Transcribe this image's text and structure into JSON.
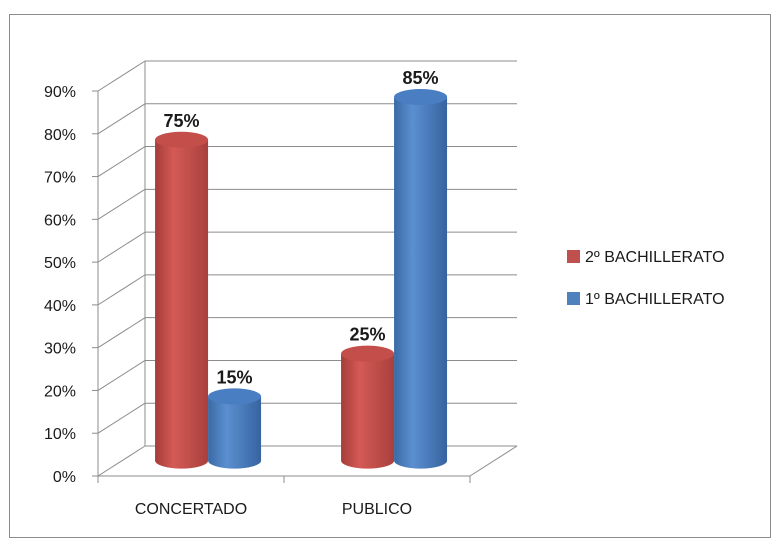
{
  "chart_data": {
    "type": "bar",
    "title": "",
    "xlabel": "",
    "ylabel": "",
    "categories": [
      "CONCERTADO",
      "PUBLICO"
    ],
    "series": [
      {
        "name": "2º BACHILLERATO",
        "values": [
          75,
          25
        ],
        "labels": [
          "75%",
          "25%"
        ],
        "color": "#c0504d"
      },
      {
        "name": "1º BACHILLERATO",
        "values": [
          15,
          85
        ],
        "labels": [
          "15%",
          "85%"
        ],
        "color": "#4f81bd"
      }
    ],
    "ylim": [
      0,
      90
    ],
    "ytick_labels": [
      "0%",
      "10%",
      "20%",
      "30%",
      "40%",
      "50%",
      "60%",
      "70%",
      "80%",
      "90%"
    ],
    "grid": true,
    "legend_position": "right",
    "style_3d": "cylinder"
  }
}
